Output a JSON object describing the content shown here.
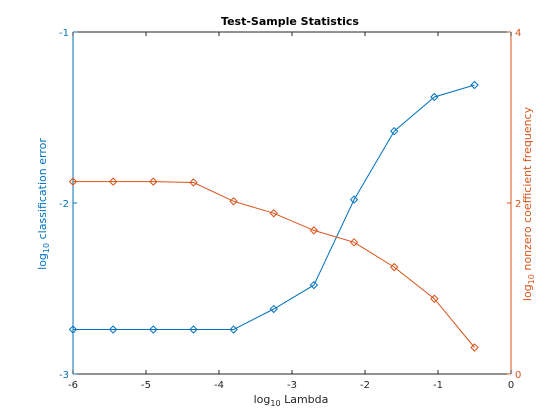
{
  "chart_data": {
    "type": "line",
    "title": "Test-Sample Statistics",
    "xlabel": {
      "prefix": "log",
      "sub": "10",
      "suffix": " Lambda"
    },
    "ylabel_left": {
      "prefix": "log",
      "sub": "10",
      "suffix": " classification error"
    },
    "ylabel_right": {
      "prefix": "log",
      "sub": "10",
      "suffix": " nonzero coefficient frequency"
    },
    "xlim": [
      -6,
      0
    ],
    "ylim_left": [
      -3,
      -1
    ],
    "ylim_right": [
      0,
      4
    ],
    "x_ticks": [
      "-6",
      "-5",
      "-4",
      "-3",
      "-2",
      "-1",
      "0"
    ],
    "y_left_ticks": [
      "-3",
      "-2",
      "-1"
    ],
    "y_right_ticks": [
      "0",
      "2",
      "4"
    ],
    "grid": false,
    "series": [
      {
        "axis": "left",
        "color": "#0072BD",
        "marker": "diamond",
        "x": [
          -6.0,
          -5.45,
          -4.9,
          -4.35,
          -3.8,
          -3.25,
          -2.7,
          -2.15,
          -1.6,
          -1.05,
          -0.5
        ],
        "y": [
          -2.74,
          -2.74,
          -2.74,
          -2.74,
          -2.74,
          -2.62,
          -2.48,
          -1.98,
          -1.58,
          -1.38,
          -1.31
        ]
      },
      {
        "axis": "right",
        "color": "#D95319",
        "marker": "diamond",
        "x": [
          -6.0,
          -5.45,
          -4.9,
          -4.35,
          -3.8,
          -3.25,
          -2.7,
          -2.15,
          -1.6,
          -1.05,
          -0.5
        ],
        "y": [
          2.25,
          2.25,
          2.25,
          2.24,
          2.02,
          1.88,
          1.68,
          1.54,
          1.25,
          0.88,
          0.31
        ]
      }
    ],
    "colors": {
      "left_axis": "#0072BD",
      "right_axis": "#D95319",
      "bottom_axis": "#262626"
    }
  }
}
